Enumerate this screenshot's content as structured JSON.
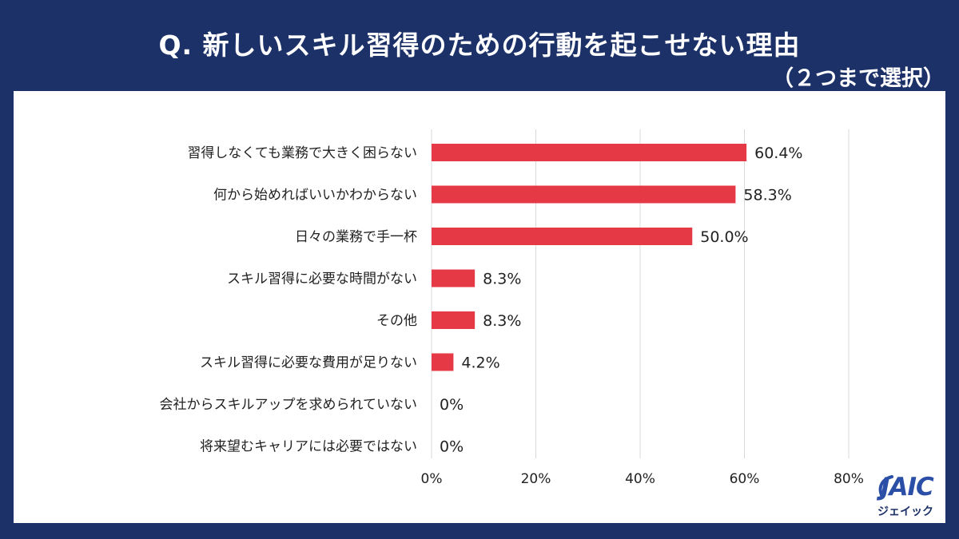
{
  "header": {
    "title": "Q. 新しいスキル習得のための行動を起こせない理由",
    "subtitle": "（２つまで選択）"
  },
  "logo": {
    "mark": "JAIC",
    "sub": "ジェイック"
  },
  "colors": {
    "background": "#1c3168",
    "panel": "#ffffff",
    "bar": "#e63946",
    "grid": "#d9d9d9",
    "text": "#222222"
  },
  "chart_data": {
    "type": "bar",
    "orientation": "horizontal",
    "title": "Q. 新しいスキル習得のための行動を起こせない理由",
    "subtitle": "（２つまで選択）",
    "categories": [
      "習得しなくても業務で大きく困らない",
      "何から始めればいいかわからない",
      "日々の業務で手一杯",
      "スキル習得に必要な時間がない",
      "その他",
      "スキル習得に必要な費用が足りない",
      "会社からスキルアップを求められていない",
      "将来望むキャリアには必要ではない"
    ],
    "values": [
      60.4,
      58.3,
      50.0,
      8.3,
      8.3,
      4.2,
      0,
      0
    ],
    "value_labels": [
      "60.4%",
      "58.3%",
      "50.0%",
      "8.3%",
      "8.3%",
      "4.2%",
      "0%",
      "0%"
    ],
    "xlim": [
      0,
      80
    ],
    "xticks": [
      0,
      20,
      40,
      60,
      80
    ],
    "xtick_labels": [
      "0%",
      "20%",
      "40%",
      "60%",
      "80%"
    ],
    "grid": true,
    "legend": "none",
    "xlabel": "",
    "ylabel": ""
  }
}
